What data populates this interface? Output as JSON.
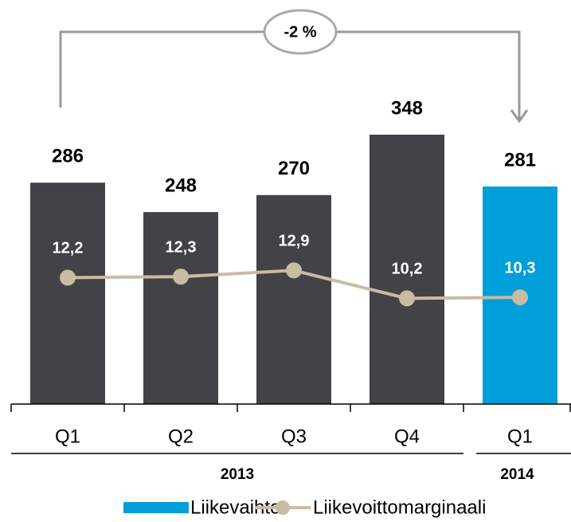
{
  "chart_data": {
    "type": "bar",
    "annotation": "-2 %",
    "categories": [
      "Q1",
      "Q2",
      "Q3",
      "Q4",
      "Q1"
    ],
    "groups": [
      {
        "label": "2013",
        "span": 4
      },
      {
        "label": "2014",
        "span": 1
      }
    ],
    "ylim": [
      0,
      522
    ],
    "y2lim": [
      0,
      39
    ],
    "series": [
      {
        "name": "Liikevaihto",
        "type": "bar",
        "color": "#009fda",
        "colors": [
          "#434246",
          "#434246",
          "#434246",
          "#434246",
          "#009fda"
        ],
        "values": [
          286,
          248,
          270,
          348,
          281
        ]
      },
      {
        "name": "Liikevoittomarginaali",
        "type": "line",
        "axis": "y2",
        "color": "#c8bca4",
        "values": [
          12.2,
          12.3,
          12.9,
          10.2,
          10.3
        ],
        "value_labels": [
          "12,2",
          "12,3",
          "12,9",
          "10,2",
          "10,3"
        ]
      }
    ],
    "legend": "bottom"
  }
}
